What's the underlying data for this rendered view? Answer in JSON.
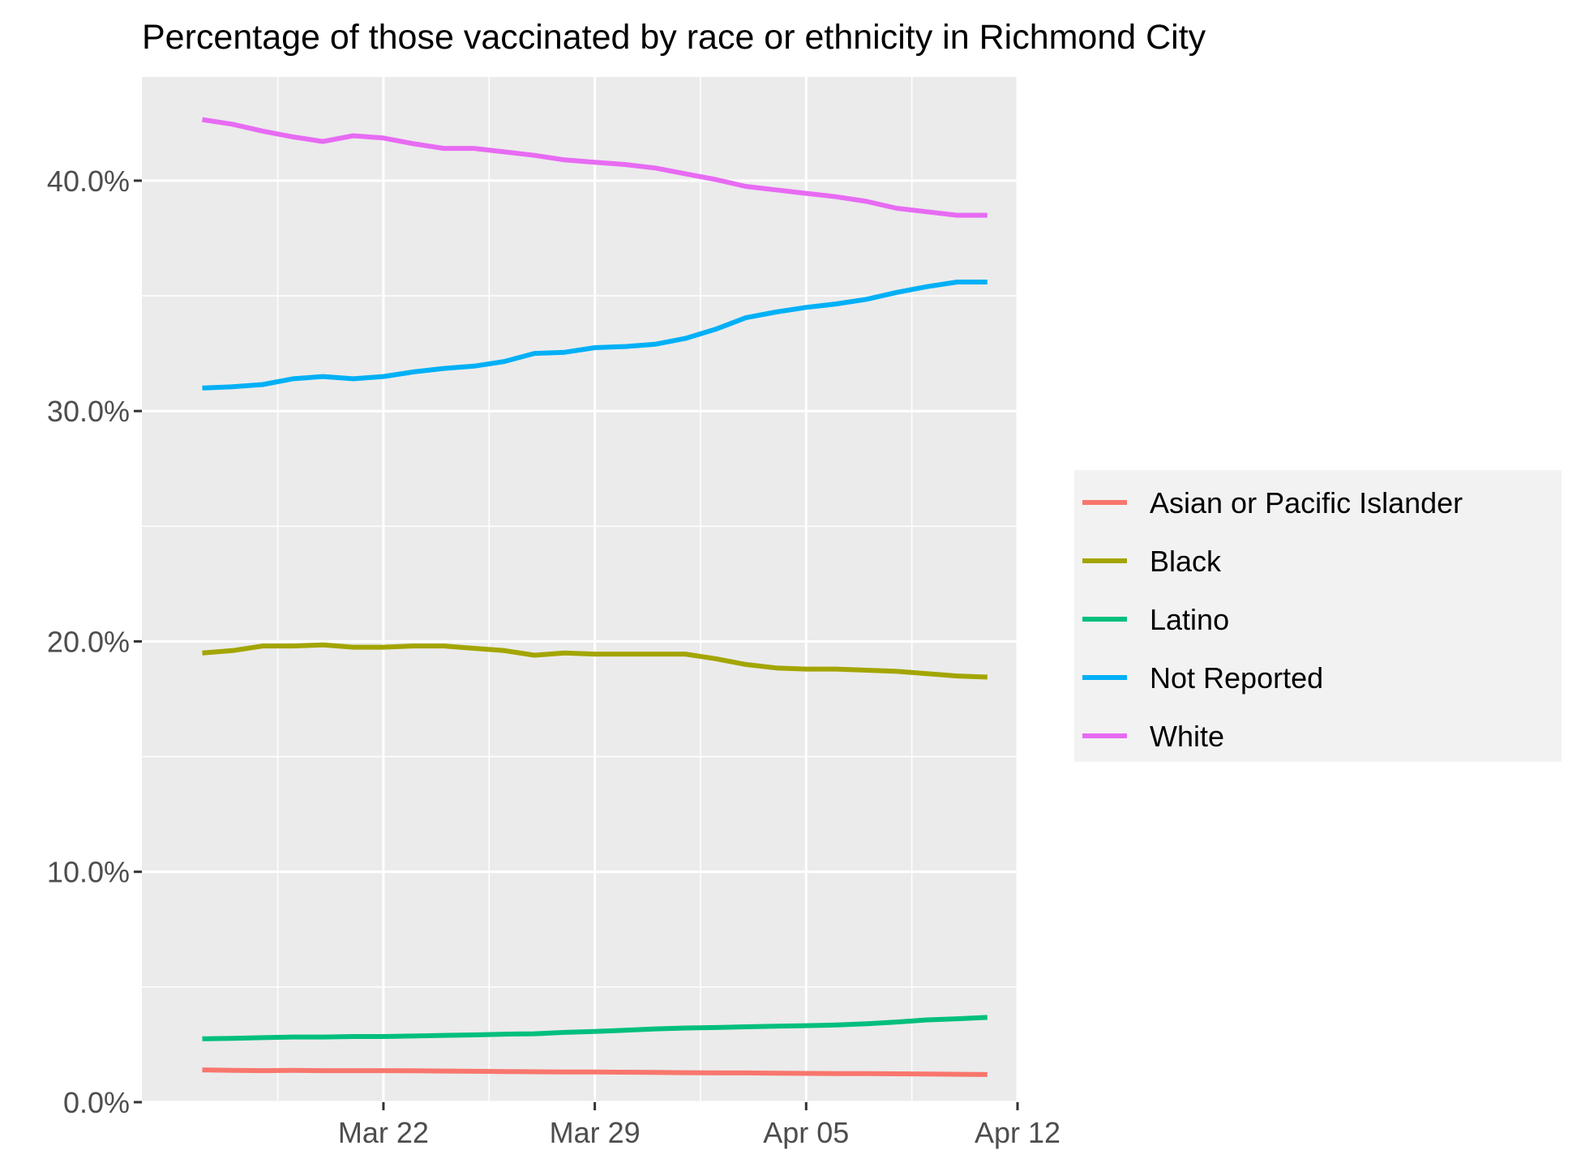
{
  "chart_data": {
    "type": "line",
    "title": "Percentage of those vaccinated by race or ethnicity in Richmond City",
    "xlabel": "",
    "ylabel": "",
    "x_axis_type": "date",
    "xlim": [
      "2021-03-14",
      "2021-04-12"
    ],
    "ylim": [
      0,
      44.5
    ],
    "x_ticks": [
      {
        "date": "2021-03-22",
        "label": "Mar 22"
      },
      {
        "date": "2021-03-29",
        "label": "Mar 29"
      },
      {
        "date": "2021-04-05",
        "label": "Apr 05"
      },
      {
        "date": "2021-04-12",
        "label": "Apr 12"
      }
    ],
    "y_ticks": [
      {
        "value": 0,
        "label": "0.0%"
      },
      {
        "value": 10,
        "label": "10.0%"
      },
      {
        "value": 20,
        "label": "20.0%"
      },
      {
        "value": 30,
        "label": "30.0%"
      },
      {
        "value": 40,
        "label": "40.0%"
      }
    ],
    "grid": true,
    "legend_position": "right",
    "x": [
      "2021-03-16",
      "2021-03-17",
      "2021-03-18",
      "2021-03-19",
      "2021-03-20",
      "2021-03-21",
      "2021-03-22",
      "2021-03-23",
      "2021-03-24",
      "2021-03-25",
      "2021-03-26",
      "2021-03-27",
      "2021-03-28",
      "2021-03-29",
      "2021-03-30",
      "2021-03-31",
      "2021-04-01",
      "2021-04-02",
      "2021-04-03",
      "2021-04-04",
      "2021-04-05",
      "2021-04-06",
      "2021-04-07",
      "2021-04-08",
      "2021-04-09",
      "2021-04-10",
      "2021-04-11"
    ],
    "series": [
      {
        "name": "Asian or Pacific Islander",
        "color": "#F8766D",
        "values": [
          1.4,
          1.38,
          1.37,
          1.38,
          1.37,
          1.37,
          1.37,
          1.36,
          1.35,
          1.34,
          1.33,
          1.32,
          1.31,
          1.31,
          1.3,
          1.29,
          1.28,
          1.27,
          1.27,
          1.26,
          1.25,
          1.24,
          1.24,
          1.23,
          1.22,
          1.21,
          1.2
        ]
      },
      {
        "name": "Black",
        "color": "#A3A500",
        "values": [
          19.5,
          19.6,
          19.8,
          19.8,
          19.85,
          19.75,
          19.75,
          19.8,
          19.8,
          19.7,
          19.6,
          19.4,
          19.5,
          19.45,
          19.45,
          19.45,
          19.45,
          19.25,
          19.0,
          18.85,
          18.8,
          18.8,
          18.75,
          18.7,
          18.6,
          18.5,
          18.45
        ]
      },
      {
        "name": "Latino",
        "color": "#00BF7D",
        "values": [
          2.75,
          2.77,
          2.8,
          2.83,
          2.83,
          2.85,
          2.85,
          2.87,
          2.9,
          2.92,
          2.95,
          2.97,
          3.03,
          3.07,
          3.12,
          3.18,
          3.22,
          3.24,
          3.27,
          3.3,
          3.32,
          3.35,
          3.4,
          3.48,
          3.57,
          3.62,
          3.68
        ]
      },
      {
        "name": "Not Reported",
        "color": "#00B0F6",
        "values": [
          31.0,
          31.05,
          31.15,
          31.4,
          31.5,
          31.4,
          31.5,
          31.7,
          31.85,
          31.95,
          32.15,
          32.5,
          32.55,
          32.75,
          32.8,
          32.9,
          33.15,
          33.55,
          34.05,
          34.3,
          34.5,
          34.65,
          34.85,
          35.15,
          35.4,
          35.6,
          35.6
        ]
      },
      {
        "name": "White",
        "color": "#E76BF3",
        "values": [
          42.65,
          42.45,
          42.15,
          41.9,
          41.7,
          41.95,
          41.85,
          41.6,
          41.4,
          41.4,
          41.25,
          41.1,
          40.9,
          40.8,
          40.7,
          40.55,
          40.3,
          40.05,
          39.75,
          39.6,
          39.45,
          39.3,
          39.1,
          38.8,
          38.65,
          38.5,
          38.5
        ]
      }
    ]
  }
}
